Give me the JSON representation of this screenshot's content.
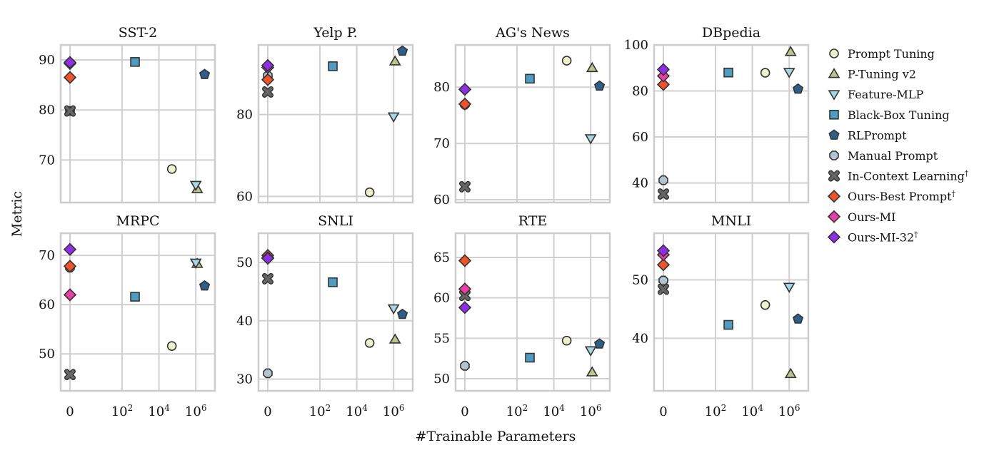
{
  "figure": {
    "ylabel": "Metric",
    "xlabel": "#Trainable Parameters",
    "x_ticks": [
      {
        "value": 0,
        "base": "0",
        "exp": ""
      },
      {
        "value": 100,
        "base": "10",
        "exp": "2"
      },
      {
        "value": 10000,
        "base": "10",
        "exp": "4"
      },
      {
        "value": 1000000,
        "base": "10",
        "exp": "6"
      }
    ],
    "x_scale": "symlog (0 shown separately from log-spaced powers of ten)",
    "grid": true
  },
  "legend": {
    "placement": "right",
    "items": [
      {
        "key": "pt",
        "label": "Prompt Tuning",
        "sup": "",
        "marker": "circle",
        "color": "#eef0cc"
      },
      {
        "key": "ptv2",
        "label": "P-Tuning v2",
        "sup": "",
        "marker": "triangle-up",
        "color": "#b9c48f"
      },
      {
        "key": "fmlp",
        "label": "Feature-MLP",
        "sup": "",
        "marker": "triangle-down",
        "color": "#a8d6e3"
      },
      {
        "key": "bbt",
        "label": "Black-Box Tuning",
        "sup": "",
        "marker": "square",
        "color": "#4f9cc2"
      },
      {
        "key": "rl",
        "label": "RLPrompt",
        "sup": "",
        "marker": "pentagon",
        "color": "#2d5f8a"
      },
      {
        "key": "mp",
        "label": "Manual Prompt",
        "sup": "",
        "marker": "octagon",
        "color": "#b3c4d1"
      },
      {
        "key": "icl",
        "label": "In-Context Learning",
        "sup": "†",
        "marker": "x",
        "color": "#666666"
      },
      {
        "key": "best",
        "label": "Ours-Best Prompt",
        "sup": "†",
        "marker": "diamond",
        "color": "#f0522c"
      },
      {
        "key": "mi",
        "label": "Ours-MI",
        "sup": "",
        "marker": "diamond",
        "color": "#ea3ea6"
      },
      {
        "key": "mi32",
        "label": "Ours-MI-32",
        "sup": "†",
        "marker": "diamond",
        "color": "#8e2ee6"
      }
    ]
  },
  "chart_data": [
    {
      "type": "scatter",
      "title": "SST-2",
      "ylim": [
        61.5,
        93
      ],
      "yticks": [
        70,
        80,
        90
      ],
      "x_params": {
        "pt": 50000,
        "ptv2": 1200000,
        "fmlp": 1000000,
        "bbt": 500,
        "rl": 3000000,
        "mp": 0,
        "icl": 0,
        "best": 0,
        "mi": 0,
        "mi32": 0
      },
      "points": {
        "pt": 68.2,
        "ptv2": 64.2,
        "fmlp": 65.0,
        "bbt": 89.6,
        "rl": 87.1,
        "mp": 79.8,
        "icl": 79.8,
        "best": 86.5,
        "mi": 89.3,
        "mi32": 89.5
      }
    },
    {
      "type": "scatter",
      "title": "Yelp P.",
      "ylim": [
        58.5,
        97
      ],
      "yticks": [
        60,
        80
      ],
      "x_params": {
        "pt": 50000,
        "ptv2": 1200000,
        "fmlp": 1000000,
        "bbt": 500,
        "rl": 3000000,
        "mp": 0,
        "icl": 0,
        "best": 0,
        "mi": 0,
        "mi32": 0
      },
      "points": {
        "pt": 61.0,
        "ptv2": 93.0,
        "fmlp": 79.5,
        "bbt": 91.8,
        "rl": 95.5,
        "mp": 89.5,
        "icl": 85.5,
        "best": 88.5,
        "mi": 91.5,
        "mi32": 92.0
      }
    },
    {
      "type": "scatter",
      "title": "AG's News",
      "ylim": [
        59.5,
        87.5
      ],
      "yticks": [
        60,
        70,
        80
      ],
      "x_params": {
        "pt": 50000,
        "ptv2": 1200000,
        "fmlp": 1000000,
        "bbt": 500,
        "rl": 3000000,
        "mp": 0,
        "icl": 0,
        "best": 0,
        "mi": 0,
        "mi32": 0
      },
      "points": {
        "pt": 84.7,
        "ptv2": 83.4,
        "fmlp": 70.9,
        "bbt": 81.5,
        "rl": 80.2,
        "mp": 76.9,
        "icl": 62.3,
        "best": 77.0,
        "mi": 79.6,
        "mi32": 79.6
      }
    },
    {
      "type": "scatter",
      "title": "DBpedia",
      "ylim": [
        31.5,
        100
      ],
      "yticks": [
        40,
        60,
        80,
        100
      ],
      "x_params": {
        "pt": 50000,
        "ptv2": 1200000,
        "fmlp": 1000000,
        "bbt": 500,
        "rl": 3000000,
        "mp": 0,
        "icl": 0,
        "best": 0,
        "mi": 0,
        "mi32": 0
      },
      "points": {
        "pt": 87.9,
        "ptv2": 97.0,
        "fmlp": 88.2,
        "bbt": 88.0,
        "rl": 80.8,
        "mp": 41.2,
        "icl": 35.2,
        "best": 82.8,
        "mi": 86.5,
        "mi32": 89.3
      }
    },
    {
      "type": "scatter",
      "title": "MRPC",
      "ylim": [
        42.5,
        74.5
      ],
      "yticks": [
        50,
        60,
        70
      ],
      "x_params": {
        "pt": 50000,
        "ptv2": 1200000,
        "fmlp": 1000000,
        "bbt": 500,
        "rl": 3000000,
        "mp": 0,
        "icl": 0,
        "best": 0,
        "mi": 0,
        "mi32": 0
      },
      "points": {
        "pt": 51.6,
        "ptv2": 68.3,
        "fmlp": 68.5,
        "bbt": 61.6,
        "rl": 63.8,
        "mp": 67.5,
        "icl": 45.8,
        "best": 67.8,
        "mi": 62.0,
        "mi32": 71.2
      }
    },
    {
      "type": "scatter",
      "title": "SNLI",
      "ylim": [
        28,
        55
      ],
      "yticks": [
        30,
        40,
        50
      ],
      "x_params": {
        "pt": 50000,
        "ptv2": 1200000,
        "fmlp": 1000000,
        "bbt": 500,
        "rl": 3000000,
        "mp": 0,
        "icl": 0,
        "best": 0,
        "mi": 0,
        "mi32": 0
      },
      "points": {
        "pt": 36.2,
        "ptv2": 36.8,
        "fmlp": 42.1,
        "bbt": 46.6,
        "rl": 41.1,
        "mp": 31.0,
        "icl": 47.2,
        "best": 51.2,
        "mi": 50.8,
        "mi32": 50.7
      }
    },
    {
      "type": "scatter",
      "title": "RTE",
      "ylim": [
        48.5,
        68
      ],
      "yticks": [
        50,
        55,
        60,
        65
      ],
      "x_params": {
        "pt": 50000,
        "ptv2": 1200000,
        "fmlp": 1000000,
        "bbt": 500,
        "rl": 3000000,
        "mp": 0,
        "icl": 0,
        "best": 0,
        "mi": 0,
        "mi32": 0
      },
      "points": {
        "pt": 54.7,
        "ptv2": 50.8,
        "fmlp": 53.5,
        "bbt": 52.6,
        "rl": 54.3,
        "mp": 51.6,
        "icl": 60.3,
        "best": 64.6,
        "mi": 61.1,
        "mi32": 58.8
      }
    },
    {
      "type": "scatter",
      "title": "MNLI",
      "ylim": [
        31,
        58
      ],
      "yticks": [
        40,
        50
      ],
      "x_params": {
        "pt": 50000,
        "ptv2": 1200000,
        "fmlp": 1000000,
        "bbt": 500,
        "rl": 3000000,
        "mp": 0,
        "icl": 0,
        "best": 0,
        "mi": 0,
        "mi32": 0
      },
      "points": {
        "pt": 45.7,
        "ptv2": 33.9,
        "fmlp": 48.8,
        "bbt": 42.3,
        "rl": 43.3,
        "mp": 49.9,
        "icl": 48.4,
        "best": 52.6,
        "mi": 54.3,
        "mi32": 55.0
      }
    }
  ]
}
